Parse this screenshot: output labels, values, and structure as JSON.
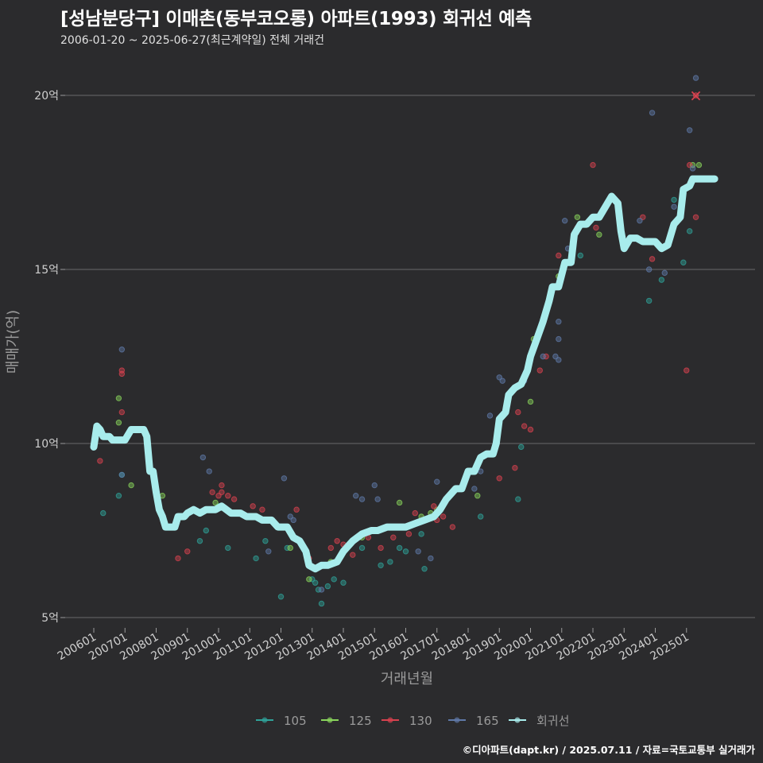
{
  "chart_data": {
    "type": "scatter",
    "title": "[성남분당구] 이매촌(동부코오롱) 아파트(1993) 회귀선 예측",
    "subtitle": "2006-01-20 ~ 2025-06-27(최근계약일) 전체 거래건",
    "xlabel": "거래년월",
    "ylabel": "매매가(억)",
    "ylim": [
      4.8,
      21.5
    ],
    "y_ticks": [
      5,
      10,
      15,
      20
    ],
    "y_tick_labels": [
      "5억",
      "10억",
      "15억",
      "20억"
    ],
    "x_ticks": [
      2006.0,
      2007.0,
      2008.0,
      2009.0,
      2010.0,
      2011.0,
      2012.0,
      2013.0,
      2014.0,
      2015.0,
      2016.0,
      2017.0,
      2018.0,
      2019.0,
      2020.0,
      2021.0,
      2022.0,
      2023.0,
      2024.0,
      2025.0
    ],
    "x_tick_labels": [
      "200601",
      "200701",
      "200801",
      "200901",
      "201001",
      "201101",
      "201201",
      "201301",
      "201401",
      "201501",
      "201601",
      "201701",
      "201801",
      "201901",
      "202001",
      "202101",
      "202201",
      "202301",
      "202401",
      "202501"
    ],
    "xlim": [
      2005.1,
      2027.0
    ],
    "legend_position": "bottom",
    "series": [
      {
        "name": "105",
        "color": "#2fa39a",
        "points": [
          [
            2006.3,
            8.0
          ],
          [
            2006.8,
            8.5
          ],
          [
            2006.9,
            9.1
          ],
          [
            2009.4,
            7.2
          ],
          [
            2009.6,
            7.5
          ],
          [
            2010.0,
            8.2
          ],
          [
            2010.3,
            7.0
          ],
          [
            2011.2,
            6.7
          ],
          [
            2011.5,
            7.2
          ],
          [
            2012.0,
            5.6
          ],
          [
            2012.2,
            7.0
          ],
          [
            2013.0,
            6.1
          ],
          [
            2013.1,
            6.0
          ],
          [
            2013.2,
            5.8
          ],
          [
            2013.3,
            5.4
          ],
          [
            2013.5,
            5.9
          ],
          [
            2013.7,
            6.1
          ],
          [
            2014.0,
            6.0
          ],
          [
            2014.6,
            7.0
          ],
          [
            2015.2,
            6.5
          ],
          [
            2015.5,
            6.6
          ],
          [
            2015.8,
            7.0
          ],
          [
            2016.0,
            6.9
          ],
          [
            2016.5,
            7.4
          ],
          [
            2016.6,
            6.4
          ],
          [
            2018.4,
            7.9
          ],
          [
            2019.6,
            8.4
          ],
          [
            2019.7,
            9.9
          ],
          [
            2021.6,
            15.4
          ],
          [
            2023.8,
            14.1
          ],
          [
            2024.2,
            14.7
          ],
          [
            2024.6,
            17.0
          ],
          [
            2024.9,
            15.2
          ],
          [
            2025.1,
            16.1
          ]
        ]
      },
      {
        "name": "125",
        "color": "#8ad65c",
        "points": [
          [
            2006.8,
            11.3
          ],
          [
            2006.8,
            10.6
          ],
          [
            2007.2,
            8.8
          ],
          [
            2008.2,
            8.5
          ],
          [
            2009.9,
            8.3
          ],
          [
            2012.3,
            7.0
          ],
          [
            2012.9,
            6.1
          ],
          [
            2013.6,
            6.6
          ],
          [
            2014.6,
            7.3
          ],
          [
            2015.8,
            8.3
          ],
          [
            2016.3,
            7.7
          ],
          [
            2016.5,
            7.9
          ],
          [
            2016.8,
            8.0
          ],
          [
            2017.0,
            8.1
          ],
          [
            2018.3,
            8.5
          ],
          [
            2020.0,
            11.2
          ],
          [
            2020.1,
            13.0
          ],
          [
            2020.9,
            14.8
          ],
          [
            2021.5,
            16.5
          ],
          [
            2022.2,
            16.0
          ],
          [
            2025.2,
            18.0
          ],
          [
            2025.4,
            18.0
          ]
        ]
      },
      {
        "name": "130",
        "color": "#d9424f",
        "points": [
          [
            2006.2,
            9.5
          ],
          [
            2006.9,
            12.0
          ],
          [
            2006.9,
            12.1
          ],
          [
            2006.9,
            10.9
          ],
          [
            2008.7,
            6.7
          ],
          [
            2009.0,
            6.9
          ],
          [
            2009.8,
            8.6
          ],
          [
            2010.0,
            8.5
          ],
          [
            2010.1,
            8.6
          ],
          [
            2010.1,
            8.8
          ],
          [
            2010.3,
            8.5
          ],
          [
            2010.5,
            8.4
          ],
          [
            2011.1,
            8.2
          ],
          [
            2011.4,
            8.1
          ],
          [
            2012.5,
            8.1
          ],
          [
            2012.9,
            6.7
          ],
          [
            2013.6,
            7.0
          ],
          [
            2013.8,
            7.2
          ],
          [
            2014.0,
            7.1
          ],
          [
            2014.3,
            6.8
          ],
          [
            2014.8,
            7.3
          ],
          [
            2015.2,
            7.0
          ],
          [
            2015.6,
            7.3
          ],
          [
            2016.1,
            7.4
          ],
          [
            2016.3,
            8.0
          ],
          [
            2016.9,
            8.2
          ],
          [
            2017.0,
            7.8
          ],
          [
            2017.2,
            7.9
          ],
          [
            2017.5,
            7.6
          ],
          [
            2019.0,
            9.0
          ],
          [
            2019.5,
            9.3
          ],
          [
            2019.6,
            10.9
          ],
          [
            2019.8,
            10.5
          ],
          [
            2020.0,
            10.4
          ],
          [
            2020.3,
            12.1
          ],
          [
            2020.5,
            12.5
          ],
          [
            2020.8,
            14.5
          ],
          [
            2020.9,
            15.4
          ],
          [
            2021.5,
            16.2
          ],
          [
            2022.0,
            18.0
          ],
          [
            2022.1,
            16.2
          ],
          [
            2023.6,
            16.5
          ],
          [
            2023.9,
            15.3
          ],
          [
            2025.0,
            12.1
          ],
          [
            2025.1,
            18.0
          ],
          [
            2025.3,
            16.5
          ],
          [
            2025.3,
            20.0
          ]
        ]
      },
      {
        "name": "165",
        "color": "#5f79a8",
        "points": [
          [
            2006.9,
            12.7
          ],
          [
            2006.9,
            9.1
          ],
          [
            2009.5,
            9.6
          ],
          [
            2009.7,
            9.2
          ],
          [
            2011.6,
            6.9
          ],
          [
            2012.1,
            9.0
          ],
          [
            2012.3,
            7.9
          ],
          [
            2012.4,
            7.8
          ],
          [
            2013.3,
            5.8
          ],
          [
            2014.4,
            8.5
          ],
          [
            2014.6,
            8.4
          ],
          [
            2015.0,
            8.8
          ],
          [
            2015.1,
            8.4
          ],
          [
            2016.4,
            6.9
          ],
          [
            2016.8,
            6.7
          ],
          [
            2017.0,
            8.9
          ],
          [
            2018.2,
            8.7
          ],
          [
            2018.4,
            9.2
          ],
          [
            2018.7,
            10.8
          ],
          [
            2019.0,
            11.9
          ],
          [
            2019.1,
            11.8
          ],
          [
            2019.8,
            11.8
          ],
          [
            2020.4,
            12.5
          ],
          [
            2020.8,
            12.5
          ],
          [
            2020.9,
            12.4
          ],
          [
            2020.9,
            13.0
          ],
          [
            2020.9,
            13.5
          ],
          [
            2021.1,
            16.4
          ],
          [
            2021.2,
            15.6
          ],
          [
            2023.5,
            16.4
          ],
          [
            2023.8,
            15.0
          ],
          [
            2023.9,
            19.5
          ],
          [
            2024.3,
            14.9
          ],
          [
            2024.6,
            16.8
          ],
          [
            2025.1,
            19.0
          ],
          [
            2025.2,
            17.9
          ],
          [
            2025.3,
            20.5
          ]
        ]
      },
      {
        "name": "회귀선",
        "color": "#a8ecec",
        "points": [
          [
            2006.0,
            9.9
          ],
          [
            2006.1,
            10.5
          ],
          [
            2006.2,
            10.4
          ],
          [
            2006.3,
            10.2
          ],
          [
            2006.5,
            10.2
          ],
          [
            2006.6,
            10.1
          ],
          [
            2007.0,
            10.1
          ],
          [
            2007.2,
            10.4
          ],
          [
            2007.6,
            10.4
          ],
          [
            2007.7,
            10.2
          ],
          [
            2007.8,
            9.2
          ],
          [
            2007.9,
            9.2
          ],
          [
            2008.0,
            8.6
          ],
          [
            2008.1,
            8.1
          ],
          [
            2008.2,
            7.9
          ],
          [
            2008.3,
            7.6
          ],
          [
            2008.6,
            7.6
          ],
          [
            2008.7,
            7.9
          ],
          [
            2008.9,
            7.9
          ],
          [
            2009.0,
            8.0
          ],
          [
            2009.2,
            8.1
          ],
          [
            2009.4,
            8.0
          ],
          [
            2009.6,
            8.1
          ],
          [
            2009.9,
            8.1
          ],
          [
            2010.1,
            8.2
          ],
          [
            2010.4,
            8.0
          ],
          [
            2010.7,
            8.0
          ],
          [
            2010.9,
            7.9
          ],
          [
            2011.2,
            7.9
          ],
          [
            2011.4,
            7.8
          ],
          [
            2011.7,
            7.8
          ],
          [
            2011.9,
            7.6
          ],
          [
            2012.2,
            7.6
          ],
          [
            2012.4,
            7.3
          ],
          [
            2012.6,
            7.2
          ],
          [
            2012.8,
            6.9
          ],
          [
            2012.9,
            6.5
          ],
          [
            2013.1,
            6.4
          ],
          [
            2013.3,
            6.5
          ],
          [
            2013.5,
            6.5
          ],
          [
            2013.8,
            6.6
          ],
          [
            2014.0,
            6.9
          ],
          [
            2014.3,
            7.2
          ],
          [
            2014.6,
            7.4
          ],
          [
            2014.9,
            7.5
          ],
          [
            2015.1,
            7.5
          ],
          [
            2015.4,
            7.6
          ],
          [
            2015.7,
            7.6
          ],
          [
            2016.0,
            7.6
          ],
          [
            2016.3,
            7.7
          ],
          [
            2016.6,
            7.8
          ],
          [
            2016.9,
            7.9
          ],
          [
            2017.1,
            8.1
          ],
          [
            2017.3,
            8.4
          ],
          [
            2017.6,
            8.7
          ],
          [
            2017.8,
            8.7
          ],
          [
            2018.0,
            9.2
          ],
          [
            2018.2,
            9.2
          ],
          [
            2018.4,
            9.6
          ],
          [
            2018.6,
            9.7
          ],
          [
            2018.8,
            9.7
          ],
          [
            2018.9,
            10.0
          ],
          [
            2019.0,
            10.7
          ],
          [
            2019.2,
            10.9
          ],
          [
            2019.3,
            11.4
          ],
          [
            2019.5,
            11.6
          ],
          [
            2019.7,
            11.7
          ],
          [
            2019.9,
            12.1
          ],
          [
            2020.0,
            12.5
          ],
          [
            2020.2,
            13.0
          ],
          [
            2020.4,
            13.5
          ],
          [
            2020.6,
            14.1
          ],
          [
            2020.7,
            14.5
          ],
          [
            2020.9,
            14.5
          ],
          [
            2021.1,
            15.2
          ],
          [
            2021.3,
            15.2
          ],
          [
            2021.4,
            16.0
          ],
          [
            2021.6,
            16.3
          ],
          [
            2021.8,
            16.3
          ],
          [
            2022.0,
            16.5
          ],
          [
            2022.2,
            16.5
          ],
          [
            2022.4,
            16.8
          ],
          [
            2022.6,
            17.1
          ],
          [
            2022.8,
            16.9
          ],
          [
            2022.9,
            16.1
          ],
          [
            2023.0,
            15.6
          ],
          [
            2023.2,
            15.9
          ],
          [
            2023.4,
            15.9
          ],
          [
            2023.6,
            15.8
          ],
          [
            2023.8,
            15.8
          ],
          [
            2024.0,
            15.8
          ],
          [
            2024.2,
            15.6
          ],
          [
            2024.4,
            15.7
          ],
          [
            2024.6,
            16.3
          ],
          [
            2024.8,
            16.5
          ],
          [
            2024.9,
            17.3
          ],
          [
            2025.1,
            17.4
          ],
          [
            2025.2,
            17.6
          ],
          [
            2025.5,
            17.6
          ],
          [
            2025.9,
            17.6
          ]
        ]
      }
    ],
    "predicted_point": {
      "label": "×",
      "x": 2025.3,
      "y": 20.0,
      "color": "#d9424f"
    }
  },
  "footer": "©디아파트(dapt.kr) / 2025.07.11 / 자료=국토교통부 실거래가"
}
